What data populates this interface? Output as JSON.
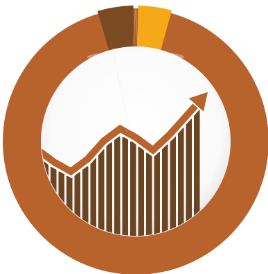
{
  "illustration": {
    "icon": "growth-chart-donut-icon",
    "colors": {
      "ring_main": "#b8622c",
      "ring_dark": "#7a4a22",
      "ring_accent": "#f5a818",
      "inner_bg": "#ffffff",
      "inner_shadow": "#e6e6e6",
      "bars": "#6b4422",
      "bar_separator": "#ffffff",
      "trend_line": "#b8622c"
    },
    "ring_segments": [
      {
        "name": "main",
        "value": 0.84,
        "color": "#b8622c"
      },
      {
        "name": "dark",
        "value": 0.08,
        "color": "#7a4a22"
      },
      {
        "name": "accent",
        "value": 0.08,
        "color": "#f5a818"
      }
    ],
    "trend_points": [
      0.38,
      0.3,
      0.24,
      0.32,
      0.44,
      0.52,
      0.46,
      0.38,
      0.48,
      0.6,
      0.72
    ],
    "bar_count": 20
  }
}
